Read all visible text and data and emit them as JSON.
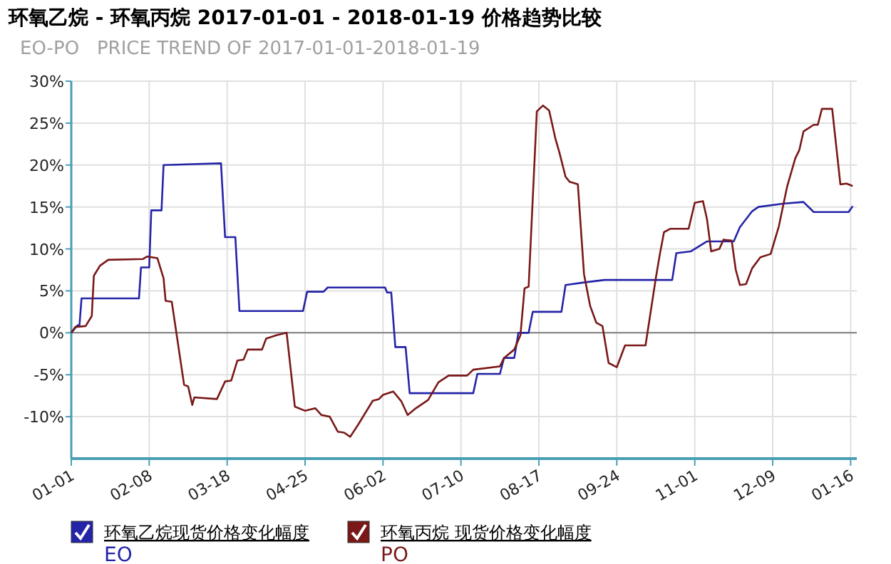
{
  "chart_data": {
    "type": "line",
    "title": "环氧乙烷 - 环氧丙烷 2017-01-01 - 2018-01-19 价格趋势比较",
    "subtitle": "EO-PO   PRICE TREND OF 2017-01-01-2018-01-19",
    "xlim": [
      "2017-01-01",
      "2018-01-19"
    ],
    "xticks": [
      {
        "value": "2017-01-01",
        "label": "01-01"
      },
      {
        "value": "2017-02-08",
        "label": "02-08"
      },
      {
        "value": "2017-03-18",
        "label": "03-18"
      },
      {
        "value": "2017-04-25",
        "label": "04-25"
      },
      {
        "value": "2017-06-02",
        "label": "06-02"
      },
      {
        "value": "2017-07-10",
        "label": "07-10"
      },
      {
        "value": "2017-08-17",
        "label": "08-17"
      },
      {
        "value": "2017-09-24",
        "label": "09-24"
      },
      {
        "value": "2017-11-01",
        "label": "11-01"
      },
      {
        "value": "2017-12-09",
        "label": "12-09"
      },
      {
        "value": "2018-01-16",
        "label": "01-16"
      }
    ],
    "ylim": [
      -15,
      30
    ],
    "yticks": [
      {
        "value": 30,
        "label": "30%"
      },
      {
        "value": 25,
        "label": "25%"
      },
      {
        "value": 20,
        "label": "20%"
      },
      {
        "value": 15,
        "label": "15%"
      },
      {
        "value": 10,
        "label": "10%"
      },
      {
        "value": 5,
        "label": "5%"
      },
      {
        "value": 0,
        "label": "0%"
      },
      {
        "value": -5,
        "label": "-5%"
      },
      {
        "value": -10,
        "label": "-10%"
      }
    ],
    "grid": true,
    "legend": "bottom",
    "ref_lines": [
      {
        "axis": "y",
        "value": 0,
        "color": "#808080"
      }
    ],
    "series": [
      {
        "name": "环氧乙烷现货价格变化幅度",
        "color": "#2424a8",
        "x": [
          "2017-01-01",
          "2017-01-04",
          "2017-01-05",
          "2017-01-06",
          "2017-02-03",
          "2017-02-04",
          "2017-02-08",
          "2017-02-09",
          "2017-02-14",
          "2017-02-15",
          "2017-03-15",
          "2017-03-17",
          "2017-03-22",
          "2017-03-24",
          "2017-04-24",
          "2017-04-26",
          "2017-05-04",
          "2017-05-06",
          "2017-06-03",
          "2017-06-04",
          "2017-06-06",
          "2017-06-08",
          "2017-06-13",
          "2017-06-15",
          "2017-07-16",
          "2017-07-18",
          "2017-07-29",
          "2017-07-31",
          "2017-08-05",
          "2017-08-07",
          "2017-08-12",
          "2017-08-14",
          "2017-08-28",
          "2017-08-30",
          "2017-09-08",
          "2017-09-18",
          "2017-10-21",
          "2017-10-23",
          "2017-10-30",
          "2017-11-07",
          "2017-11-20",
          "2017-11-23",
          "2017-11-29",
          "2017-12-02",
          "2017-12-14",
          "2017-12-24",
          "2017-12-29",
          "2018-01-15",
          "2018-01-17"
        ],
        "values": [
          0,
          0.9,
          0.9,
          4.1,
          4.1,
          7.8,
          7.8,
          14.6,
          14.6,
          20,
          20.2,
          11.4,
          11.4,
          2.6,
          2.6,
          4.9,
          4.9,
          5.4,
          5.4,
          4.8,
          4.8,
          -1.7,
          -1.7,
          -7.2,
          -7.2,
          -4.9,
          -4.9,
          -3.0,
          -3.0,
          0,
          0,
          2.5,
          2.5,
          5.7,
          6.0,
          6.3,
          6.3,
          9.5,
          9.7,
          10.9,
          10.9,
          12.6,
          14.5,
          15.0,
          15.4,
          15.6,
          14.4,
          14.4,
          15.1
        ]
      },
      {
        "name": "环氧丙烷 现货价格变化幅度",
        "color": "#7a1818",
        "x": [
          "2017-01-01",
          "2017-01-03",
          "2017-01-08",
          "2017-01-11",
          "2017-01-12",
          "2017-01-15",
          "2017-01-19",
          "2017-02-05",
          "2017-02-07",
          "2017-02-12",
          "2017-02-15",
          "2017-02-16",
          "2017-02-19",
          "2017-02-25",
          "2017-02-27",
          "2017-03-01",
          "2017-03-02",
          "2017-03-13",
          "2017-03-17",
          "2017-03-20",
          "2017-03-23",
          "2017-03-26",
          "2017-03-28",
          "2017-04-04",
          "2017-04-06",
          "2017-04-11",
          "2017-04-16",
          "2017-04-20",
          "2017-04-25",
          "2017-04-30",
          "2017-05-03",
          "2017-05-07",
          "2017-05-11",
          "2017-05-14",
          "2017-05-17",
          "2017-05-21",
          "2017-05-28",
          "2017-05-31",
          "2017-06-02",
          "2017-06-07",
          "2017-06-11",
          "2017-06-14",
          "2017-06-18",
          "2017-06-24",
          "2017-06-29",
          "2017-07-04",
          "2017-07-13",
          "2017-07-16",
          "2017-07-29",
          "2017-07-31",
          "2017-08-05",
          "2017-08-08",
          "2017-08-10",
          "2017-08-12",
          "2017-08-16",
          "2017-08-19",
          "2017-08-22",
          "2017-08-25",
          "2017-08-27",
          "2017-08-30",
          "2017-09-01",
          "2017-09-05",
          "2017-09-08",
          "2017-09-11",
          "2017-09-14",
          "2017-09-17",
          "2017-09-20",
          "2017-09-24",
          "2017-09-28",
          "2017-10-08",
          "2017-10-13",
          "2017-10-15",
          "2017-10-17",
          "2017-10-20",
          "2017-10-29",
          "2017-11-01",
          "2017-11-05",
          "2017-11-07",
          "2017-11-09",
          "2017-11-13",
          "2017-11-15",
          "2017-11-19",
          "2017-11-21",
          "2017-11-23",
          "2017-11-26",
          "2017-11-29",
          "2017-12-03",
          "2017-12-08",
          "2017-12-12",
          "2017-12-16",
          "2017-12-20",
          "2017-12-22",
          "2017-12-24",
          "2017-12-29",
          "2017-12-31",
          "2018-01-02",
          "2018-01-07",
          "2018-01-11",
          "2018-01-14",
          "2018-01-17"
        ],
        "values": [
          0,
          0.7,
          0.8,
          2.0,
          6.8,
          8.0,
          8.7,
          8.8,
          9.1,
          8.9,
          6.5,
          3.8,
          3.7,
          -6.2,
          -6.4,
          -8.6,
          -7.7,
          -7.9,
          -5.8,
          -5.7,
          -3.3,
          -3.2,
          -2.0,
          -2.0,
          -0.7,
          -0.3,
          0,
          -8.8,
          -9.3,
          -9.0,
          -9.8,
          -10,
          -11.8,
          -11.9,
          -12.4,
          -10.9,
          -8.1,
          -7.9,
          -7.4,
          -7.0,
          -8.2,
          -9.8,
          -9.0,
          -8.0,
          -5.9,
          -5.1,
          -5.1,
          -4.4,
          -4.0,
          -3.0,
          -2.0,
          -0.3,
          5.3,
          5.5,
          26.4,
          27.1,
          26.5,
          23.2,
          21.5,
          18.6,
          18.0,
          17.7,
          7.0,
          3.2,
          1.2,
          0.8,
          -3.6,
          -4.1,
          -1.5,
          -1.5,
          6.5,
          9.4,
          12.0,
          12.4,
          12.4,
          15.5,
          15.7,
          13.5,
          9.7,
          10.0,
          11.1,
          11.0,
          7.5,
          5.7,
          5.8,
          7.7,
          9.0,
          9.4,
          12.7,
          17.4,
          20.8,
          21.8,
          24.0,
          24.8,
          24.8,
          26.7,
          26.7,
          17.7,
          17.8,
          17.5
        ]
      }
    ],
    "annotations": [
      "EO",
      "PO"
    ]
  }
}
